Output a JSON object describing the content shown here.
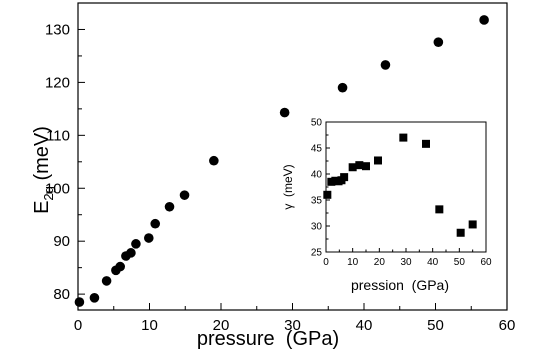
{
  "chart_data": [
    {
      "type": "scatter",
      "xlabel": "pressure  (GPa)",
      "ylabel": "E",
      "ylabel_subscript": "2g",
      "ylabel_unit": " (meV)",
      "xlim": [
        0,
        60
      ],
      "ylim": [
        77,
        135
      ],
      "xticks": [
        0,
        10,
        20,
        30,
        40,
        50,
        60
      ],
      "yticks": [
        80,
        90,
        100,
        110,
        120,
        130
      ],
      "marker": "circle",
      "grid": false,
      "series": [
        {
          "x": [
            0.2,
            2.3,
            4.0,
            5.3,
            5.9,
            6.7,
            7.4,
            8.1,
            9.9,
            10.8,
            12.8,
            14.9,
            19.0,
            28.9,
            37.0,
            43.0,
            50.4,
            56.8
          ],
          "y": [
            78.5,
            79.3,
            82.5,
            84.5,
            85.2,
            87.2,
            87.8,
            89.5,
            90.6,
            93.3,
            96.5,
            98.7,
            105.2,
            114.3,
            119.0,
            123.3,
            127.6,
            131.8
          ]
        }
      ]
    },
    {
      "type": "scatter",
      "xlabel": "pression  (GPa)",
      "ylabel": "γ  (meV)",
      "xlim": [
        0,
        60
      ],
      "ylim": [
        25,
        50
      ],
      "xticks": [
        0,
        10,
        20,
        30,
        40,
        50,
        60
      ],
      "yticks": [
        25,
        30,
        35,
        40,
        45,
        50
      ],
      "marker": "square",
      "grid": false,
      "series": [
        {
          "x": [
            0.5,
            2.0,
            3.5,
            4.7,
            5.8,
            6.8,
            10.0,
            12.5,
            15.0,
            19.5,
            29.0,
            37.5,
            42.5,
            50.5,
            55.0
          ],
          "y": [
            36.0,
            38.5,
            38.7,
            38.6,
            38.8,
            39.4,
            41.3,
            41.7,
            41.5,
            42.6,
            47.0,
            45.8,
            33.2,
            28.7,
            30.3
          ]
        }
      ]
    }
  ]
}
